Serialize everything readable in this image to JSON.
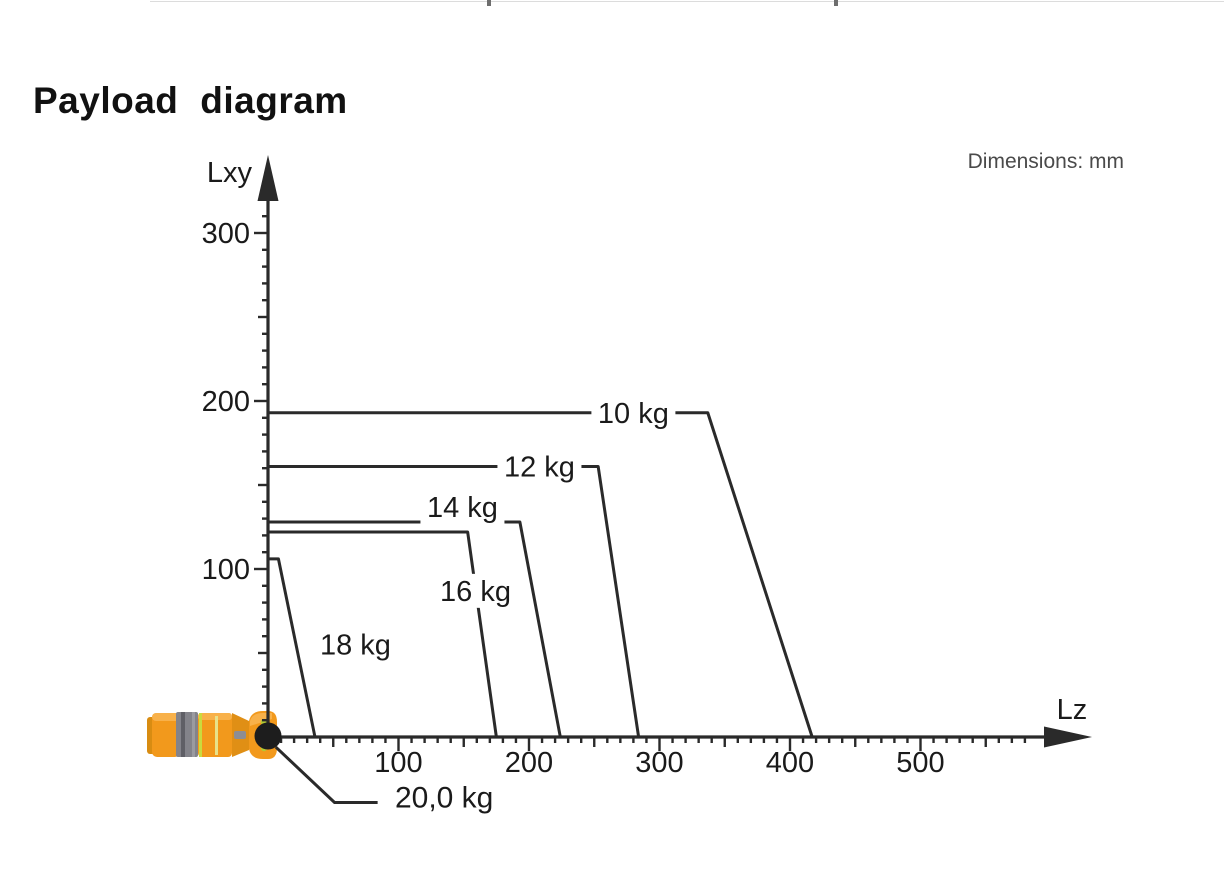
{
  "page": {
    "title": "Payload diagram",
    "dimensions_note": "Dimensions: mm"
  },
  "colors": {
    "line_ink": "#2a2a2a",
    "label_text": "#1a1a1a",
    "note_gray": "#4a4a4a",
    "robot_orange": "#f2991c",
    "robot_band_gray": "#83838a",
    "robot_accent_green": "#b4c832",
    "origin_dot": "#1d1d1d"
  },
  "chart_data": {
    "type": "line",
    "title": "Payload diagram",
    "xlabel": "Lz",
    "ylabel": "Lxy",
    "units": "mm",
    "grid": false,
    "legend": "labels-on-lines",
    "xlim": [
      0,
      590
    ],
    "ylim": [
      0,
      340
    ],
    "x_ticks_labeled": [
      100,
      200,
      300,
      400,
      500
    ],
    "y_ticks_labeled": [
      100,
      200,
      300
    ],
    "minor_tick_step_mm": 10,
    "medium_tick_step_mm": 50,
    "x_last_tick_mm": 580,
    "y_last_tick_mm": 310,
    "series": [
      {
        "name": "10 kg",
        "label": "10 kg",
        "points_mm": [
          [
            0,
            193
          ],
          [
            337,
            193
          ],
          [
            417,
            0
          ]
        ],
        "label_pos_mm": [
          280,
          193
        ],
        "label_on_line": true
      },
      {
        "name": "12 kg",
        "label": "12 kg",
        "points_mm": [
          [
            0,
            161
          ],
          [
            253,
            161
          ],
          [
            284,
            0
          ]
        ],
        "label_pos_mm": [
          208,
          161
        ],
        "label_on_line": true
      },
      {
        "name": "14 kg",
        "label": "14 kg",
        "points_mm": [
          [
            0,
            128
          ],
          [
            193,
            128
          ],
          [
            224,
            0
          ]
        ],
        "draw_segments_mm": [
          [
            [
              0,
              128
            ],
            [
              118,
              128
            ]
          ],
          [
            [
              180,
              128
            ],
            [
              193,
              128
            ],
            [
              224,
              0
            ]
          ]
        ],
        "label_pos_mm": [
          149,
          137
        ],
        "label_on_line": false
      },
      {
        "name": "16 kg",
        "label": "16 kg",
        "points_mm": [
          [
            0,
            122
          ],
          [
            153,
            122
          ],
          [
            175,
            0
          ]
        ],
        "label_pos_mm": [
          159,
          87
        ],
        "label_on_line": true
      },
      {
        "name": "18 kg",
        "label": "18 kg",
        "points_mm": [
          [
            0,
            106
          ],
          [
            8,
            106
          ],
          [
            36,
            0
          ]
        ],
        "label_pos_mm": [
          67,
          55
        ],
        "label_on_line": false
      }
    ],
    "point_annotation": {
      "label": "20,0 kg",
      "point_mm": [
        0,
        0
      ],
      "leader_mm": [
        [
          6,
          -6
        ],
        [
          51,
          -39
        ],
        [
          84,
          -39
        ]
      ],
      "label_pos_mm": [
        135,
        -36
      ]
    }
  }
}
